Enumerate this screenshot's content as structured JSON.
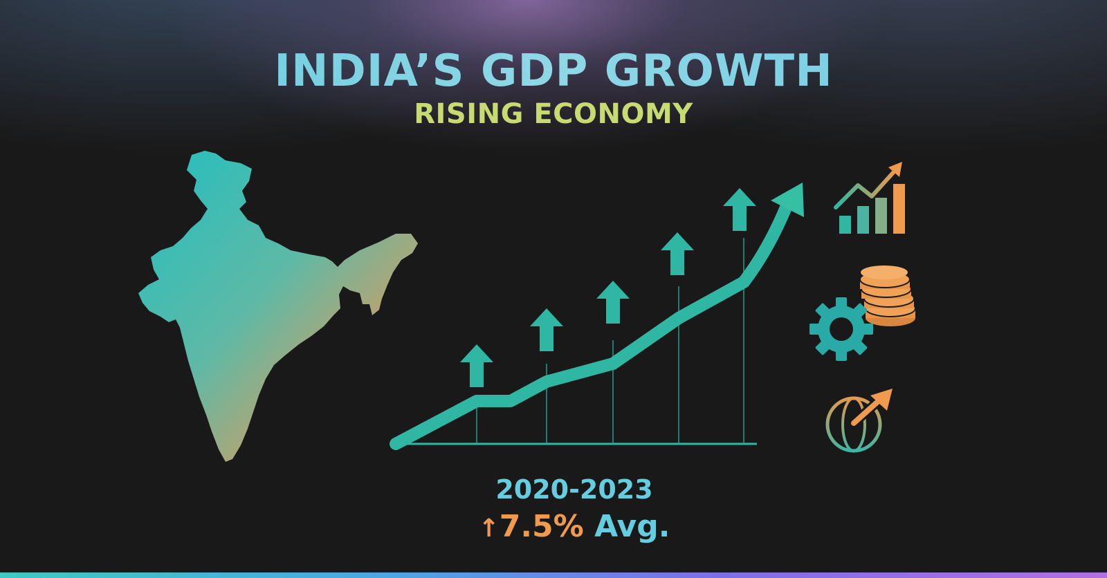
{
  "header": {
    "title": "INDIA’S GDP GROWTH",
    "subtitle": "RISING ECONOMY"
  },
  "summary": {
    "period": "2020-2023",
    "arrow_glyph": "↑",
    "growth": "7.5%",
    "suffix": "Avg."
  },
  "icons": [
    "india-map-icon",
    "bar-chart-trend-icon",
    "coin-stack-icon",
    "gear-icon",
    "globe-arrow-icon",
    "up-arrow-icon"
  ],
  "colors": {
    "teal": "#2fb7a3",
    "cyan": "#66cde0",
    "orange": "#ef9a4e",
    "lime": "#c8da72",
    "background": "#191919"
  }
}
